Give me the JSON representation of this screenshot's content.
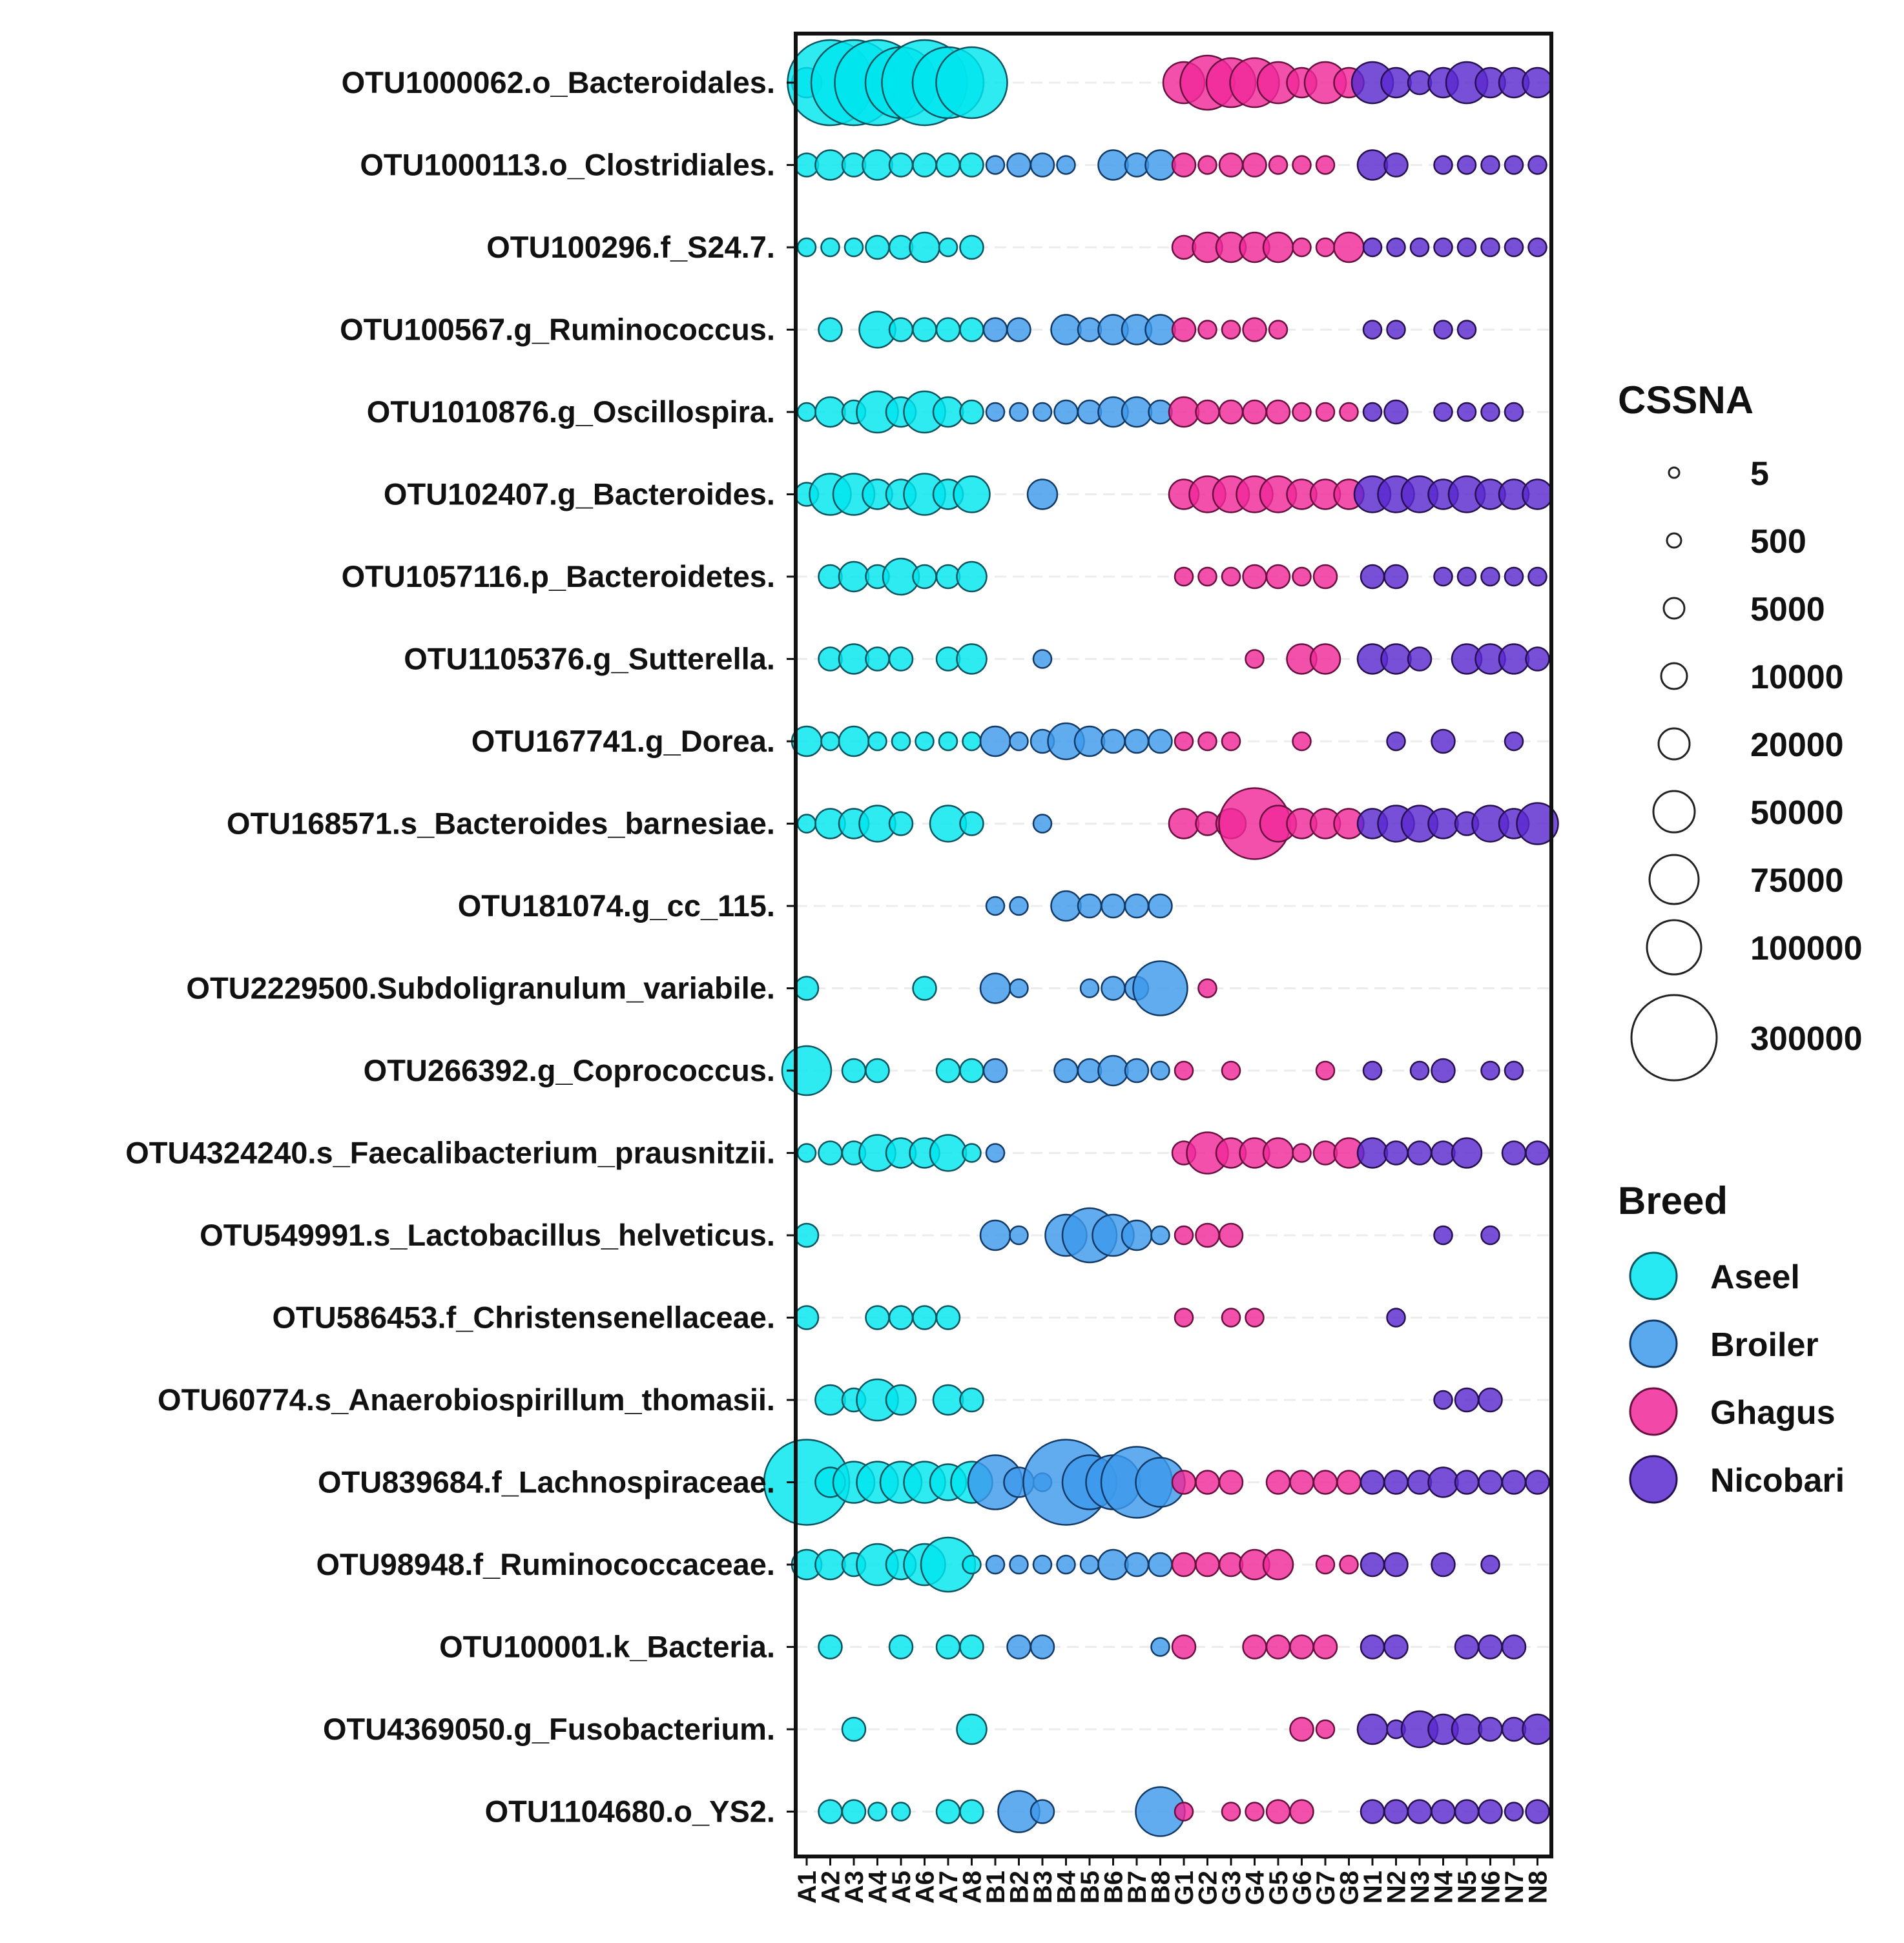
{
  "chart_data": {
    "type": "scatter",
    "subtype": "bubble",
    "x": [
      "A1",
      "A2",
      "A3",
      "A4",
      "A5",
      "A6",
      "A7",
      "A8",
      "B1",
      "B2",
      "B3",
      "B4",
      "B5",
      "B6",
      "B7",
      "B8",
      "G1",
      "G2",
      "G3",
      "G4",
      "G5",
      "G6",
      "G7",
      "G8",
      "N1",
      "N2",
      "N3",
      "N4",
      "N5",
      "N6",
      "N7",
      "N8"
    ],
    "y": [
      "OTU1000062.o_Bacteroidales.",
      "OTU1000113.o_Clostridiales.",
      "OTU100296.f_S24.7.",
      "OTU100567.g_Ruminococcus.",
      "OTU1010876.g_Oscillospira.",
      "OTU102407.g_Bacteroides.",
      "OTU1057116.p_Bacteroidetes.",
      "OTU1105376.g_Sutterella.",
      "OTU167741.g_Dorea.",
      "OTU168571.s_Bacteroides_barnesiae.",
      "OTU181074.g_cc_115.",
      "OTU2229500.Subdoligranulum_variabile.",
      "OTU266392.g_Coprococcus.",
      "OTU4324240.s_Faecalibacterium_prausnitzii.",
      "OTU549991.s_Lactobacillus_helveticus.",
      "OTU586453.f_Christensenellaceae.",
      "OTU60774.s_Anaerobiospirillum_thomasii.",
      "OTU839684.f_Lachnospiraceae.",
      "OTU98948.f_Ruminococcaceae.",
      "OTU100001.k_Bacteria.",
      "OTU4369050.g_Fusobacterium.",
      "OTU1104680.o_YS2."
    ],
    "size_legend": {
      "title": "CSSNA",
      "values": [
        "5",
        "500",
        "5000",
        "10000",
        "20000",
        "50000",
        "75000",
        "100000",
        "300000"
      ]
    },
    "color_legend": {
      "title": "Breed",
      "entries": [
        {
          "label": "Aseel",
          "color": "#00E5EE"
        },
        {
          "label": "Broiler",
          "color": "#3D9AEC"
        },
        {
          "label": "Ghagus",
          "color": "#F0299A"
        },
        {
          "label": "Nicobari",
          "color": "#5A2AD0"
        }
      ]
    },
    "breed_of_prefix": {
      "A": 0,
      "B": 1,
      "G": 2,
      "N": 3
    },
    "size_scale": [
      5,
      500,
      5000,
      10000,
      20000,
      50000,
      75000,
      100000,
      300000
    ],
    "values": [
      [
        20000,
        300000,
        300000,
        300000,
        200000,
        300000,
        200000,
        200000,
        0,
        0,
        0,
        0,
        0,
        0,
        0,
        0,
        50000,
        100000,
        75000,
        75000,
        50000,
        20000,
        50000,
        20000,
        50000,
        20000,
        10000,
        20000,
        50000,
        20000,
        20000,
        20000
      ],
      [
        10000,
        20000,
        10000,
        20000,
        10000,
        10000,
        10000,
        10000,
        5000,
        10000,
        10000,
        5000,
        0,
        20000,
        10000,
        20000,
        10000,
        5000,
        10000,
        10000,
        5000,
        5000,
        5000,
        0,
        20000,
        10000,
        0,
        5000,
        5000,
        5000,
        5000,
        5000
      ],
      [
        5000,
        5000,
        5000,
        10000,
        10000,
        20000,
        5000,
        10000,
        0,
        0,
        0,
        0,
        0,
        0,
        0,
        0,
        10000,
        20000,
        20000,
        20000,
        20000,
        5000,
        5000,
        20000,
        5000,
        5000,
        5000,
        5000,
        5000,
        5000,
        5000,
        5000
      ],
      [
        0,
        10000,
        0,
        30000,
        10000,
        10000,
        10000,
        10000,
        10000,
        10000,
        0,
        20000,
        10000,
        20000,
        20000,
        20000,
        10000,
        5000,
        5000,
        10000,
        5000,
        0,
        0,
        0,
        5000,
        5000,
        0,
        5000,
        5000,
        0,
        0,
        0
      ],
      [
        5000,
        20000,
        10000,
        50000,
        20000,
        50000,
        20000,
        10000,
        5000,
        5000,
        5000,
        10000,
        10000,
        20000,
        20000,
        10000,
        20000,
        10000,
        10000,
        10000,
        10000,
        5000,
        5000,
        5000,
        5000,
        10000,
        0,
        5000,
        5000,
        5000,
        5000,
        0
      ],
      [
        10000,
        50000,
        50000,
        20000,
        20000,
        50000,
        20000,
        30000,
        0,
        0,
        20000,
        0,
        0,
        0,
        0,
        0,
        20000,
        30000,
        30000,
        30000,
        30000,
        20000,
        20000,
        20000,
        30000,
        30000,
        30000,
        20000,
        30000,
        20000,
        20000,
        20000
      ],
      [
        0,
        10000,
        20000,
        10000,
        30000,
        10000,
        10000,
        20000,
        0,
        0,
        0,
        0,
        0,
        0,
        0,
        0,
        5000,
        5000,
        5000,
        10000,
        10000,
        5000,
        10000,
        0,
        10000,
        10000,
        0,
        5000,
        5000,
        5000,
        5000,
        5000
      ],
      [
        0,
        10000,
        20000,
        10000,
        10000,
        0,
        10000,
        20000,
        0,
        0,
        5000,
        0,
        0,
        0,
        0,
        0,
        0,
        0,
        0,
        5000,
        0,
        20000,
        20000,
        0,
        20000,
        20000,
        10000,
        0,
        20000,
        20000,
        20000,
        10000
      ],
      [
        20000,
        5000,
        20000,
        5000,
        5000,
        5000,
        5000,
        5000,
        20000,
        5000,
        10000,
        30000,
        20000,
        10000,
        10000,
        10000,
        5000,
        5000,
        5000,
        0,
        0,
        5000,
        0,
        0,
        0,
        5000,
        0,
        10000,
        0,
        0,
        5000,
        0
      ],
      [
        5000,
        20000,
        20000,
        30000,
        10000,
        0,
        30000,
        10000,
        0,
        0,
        5000,
        0,
        0,
        0,
        0,
        0,
        20000,
        10000,
        20000,
        200000,
        30000,
        20000,
        20000,
        20000,
        20000,
        30000,
        30000,
        20000,
        10000,
        30000,
        20000,
        50000
      ],
      [
        0,
        0,
        0,
        0,
        0,
        0,
        0,
        0,
        5000,
        5000,
        0,
        20000,
        10000,
        10000,
        10000,
        10000,
        0,
        0,
        0,
        0,
        0,
        0,
        0,
        0,
        0,
        0,
        0,
        0,
        0,
        0,
        0,
        0
      ],
      [
        10000,
        0,
        0,
        0,
        0,
        10000,
        0,
        0,
        20000,
        5000,
        0,
        0,
        5000,
        10000,
        10000,
        100000,
        0,
        5000,
        0,
        0,
        0,
        0,
        0,
        0,
        0,
        0,
        0,
        0,
        0,
        0,
        0,
        0
      ],
      [
        75000,
        0,
        10000,
        10000,
        0,
        0,
        10000,
        10000,
        10000,
        0,
        0,
        10000,
        10000,
        20000,
        10000,
        5000,
        5000,
        0,
        5000,
        0,
        0,
        0,
        5000,
        0,
        5000,
        0,
        5000,
        10000,
        0,
        5000,
        5000,
        0
      ],
      [
        5000,
        10000,
        10000,
        30000,
        20000,
        20000,
        30000,
        5000,
        5000,
        0,
        0,
        0,
        0,
        0,
        0,
        0,
        10000,
        50000,
        20000,
        20000,
        20000,
        5000,
        10000,
        20000,
        20000,
        10000,
        10000,
        10000,
        20000,
        0,
        10000,
        10000
      ],
      [
        10000,
        0,
        0,
        0,
        0,
        0,
        0,
        0,
        20000,
        5000,
        0,
        50000,
        100000,
        50000,
        20000,
        5000,
        5000,
        10000,
        10000,
        0,
        0,
        0,
        0,
        0,
        0,
        0,
        0,
        5000,
        0,
        5000,
        0,
        0
      ],
      [
        10000,
        0,
        0,
        10000,
        10000,
        10000,
        10000,
        0,
        0,
        0,
        0,
        0,
        0,
        0,
        0,
        0,
        5000,
        0,
        5000,
        5000,
        0,
        0,
        0,
        0,
        0,
        5000,
        0,
        0,
        0,
        0,
        0,
        0
      ],
      [
        0,
        20000,
        10000,
        50000,
        20000,
        0,
        20000,
        10000,
        0,
        0,
        0,
        0,
        0,
        0,
        0,
        0,
        0,
        0,
        0,
        0,
        0,
        0,
        0,
        0,
        0,
        0,
        0,
        5000,
        10000,
        10000,
        0,
        0
      ],
      [
        300000,
        20000,
        50000,
        50000,
        50000,
        50000,
        30000,
        50000,
        100000,
        20000,
        5000,
        300000,
        100000,
        100000,
        200000,
        75000,
        10000,
        10000,
        10000,
        0,
        10000,
        10000,
        10000,
        10000,
        10000,
        10000,
        10000,
        20000,
        10000,
        10000,
        10000,
        10000
      ],
      [
        20000,
        20000,
        10000,
        50000,
        20000,
        50000,
        100000,
        5000,
        5000,
        5000,
        5000,
        5000,
        5000,
        20000,
        10000,
        10000,
        10000,
        10000,
        10000,
        20000,
        20000,
        0,
        5000,
        5000,
        10000,
        10000,
        0,
        10000,
        0,
        5000,
        0,
        0
      ],
      [
        0,
        10000,
        0,
        0,
        10000,
        0,
        10000,
        10000,
        0,
        10000,
        10000,
        0,
        0,
        0,
        0,
        5000,
        10000,
        0,
        0,
        10000,
        10000,
        10000,
        10000,
        0,
        10000,
        10000,
        0,
        0,
        10000,
        10000,
        10000,
        0
      ],
      [
        0,
        0,
        10000,
        0,
        0,
        0,
        0,
        20000,
        0,
        0,
        0,
        0,
        0,
        0,
        0,
        0,
        0,
        0,
        0,
        0,
        0,
        10000,
        5000,
        0,
        20000,
        5000,
        30000,
        20000,
        20000,
        10000,
        10000,
        20000
      ],
      [
        0,
        10000,
        10000,
        5000,
        5000,
        0,
        10000,
        10000,
        0,
        50000,
        10000,
        0,
        0,
        0,
        0,
        75000,
        5000,
        0,
        5000,
        5000,
        10000,
        10000,
        0,
        0,
        10000,
        10000,
        10000,
        10000,
        10000,
        10000,
        5000,
        10000
      ]
    ]
  }
}
